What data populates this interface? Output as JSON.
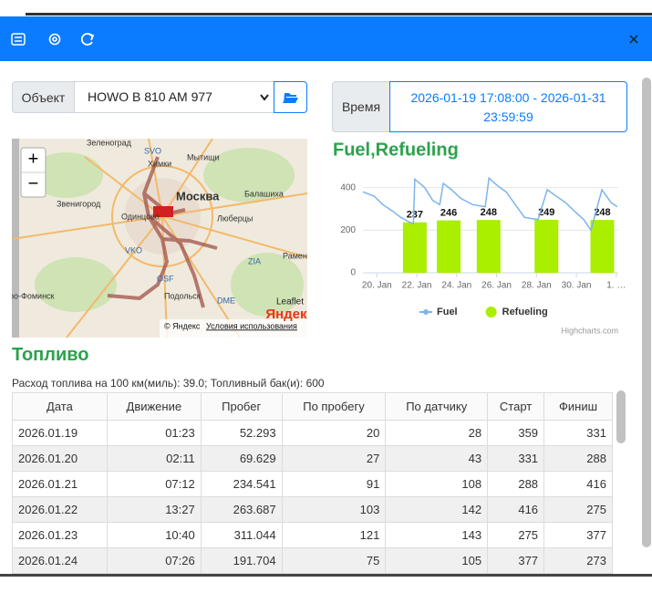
{
  "filter": {
    "object_label": "Объект",
    "object_value": "HOWO B 810 AM 977",
    "time_label": "Время",
    "time_range": "2026-01-19 17:08:00 - 2026-01-31 23:59:59"
  },
  "map": {
    "zoom_in": "+",
    "zoom_out": "−",
    "attribution": "Leaflet",
    "copyright": "© Яндекс",
    "terms": "Условия использования",
    "logo": "Яндекс",
    "labels": [
      "Зеленоград",
      "SVO",
      "Химки",
      "Мытищи",
      "Москва",
      "Балашиха",
      "Звенигород",
      "Одинцово",
      "Люберцы",
      "VKO",
      "Раменское",
      "ZIA",
      "OSF",
      "Подольск",
      "DME",
      "ро-Фоминск"
    ]
  },
  "chart_data": {
    "type": "combo",
    "title": "Fuel,Refueling",
    "credits": "Highcharts.com",
    "xlim": [
      19.3,
      32.1
    ],
    "ylim": [
      0,
      450
    ],
    "yticks": [
      0,
      200,
      400
    ],
    "xticks": [
      {
        "value": 20,
        "label": "20. Jan"
      },
      {
        "value": 22,
        "label": "22. Jan"
      },
      {
        "value": 24,
        "label": "24. Jan"
      },
      {
        "value": 26,
        "label": "26. Jan"
      },
      {
        "value": 28,
        "label": "28. Jan"
      },
      {
        "value": 30,
        "label": "30. Jan"
      },
      {
        "value": 32,
        "label": "1. …"
      }
    ],
    "grid": true,
    "series": [
      {
        "name": "Fuel",
        "type": "line",
        "color": "#7cb5ec",
        "x": [
          19.3,
          19.86,
          20.3,
          20.78,
          21.2,
          21.6,
          21.83,
          21.9,
          22.4,
          22.8,
          23.15,
          23.33,
          23.74,
          24.2,
          24.8,
          25.43,
          25.62,
          26.03,
          26.48,
          26.94,
          27.4,
          28.08,
          28.54,
          28.99,
          29.45,
          29.9,
          30.37,
          30.73,
          31.28,
          31.74,
          32.05
        ],
        "values": [
          380,
          360,
          320,
          290,
          260,
          240,
          230,
          440,
          400,
          340,
          320,
          420,
          390,
          350,
          320,
          310,
          445,
          410,
          380,
          320,
          260,
          250,
          390,
          360,
          330,
          290,
          250,
          200,
          390,
          330,
          310
        ]
      },
      {
        "name": "Refueling",
        "type": "column",
        "color": "#aaee00",
        "x": [
          21.9,
          23.6,
          25.6,
          28.5,
          31.3
        ],
        "values": [
          237,
          246,
          248,
          249,
          248
        ]
      }
    ]
  },
  "fuel": {
    "title": "Топливо",
    "summary": "Расход топлива на 100 км(миль): 39.0; Топливный бак(и): 600",
    "table": {
      "columns": [
        "Дата",
        "Движение",
        "Пробег",
        "По пробегу",
        "По датчику",
        "Старт",
        "Финиш"
      ],
      "rows": [
        [
          "2026.01.19",
          "01:23",
          52.293,
          20,
          28,
          359,
          331
        ],
        [
          "2026.01.20",
          "02:11",
          69.629,
          27,
          43,
          331,
          288
        ],
        [
          "2026.01.21",
          "07:12",
          234.541,
          91,
          108,
          288,
          416
        ],
        [
          "2026.01.22",
          "13:27",
          263.687,
          103,
          142,
          416,
          275
        ],
        [
          "2026.01.23",
          "10:40",
          311.044,
          121,
          143,
          275,
          377
        ],
        [
          "2026.01.24",
          "07:26",
          191.704,
          75,
          105,
          377,
          273
        ]
      ]
    }
  }
}
